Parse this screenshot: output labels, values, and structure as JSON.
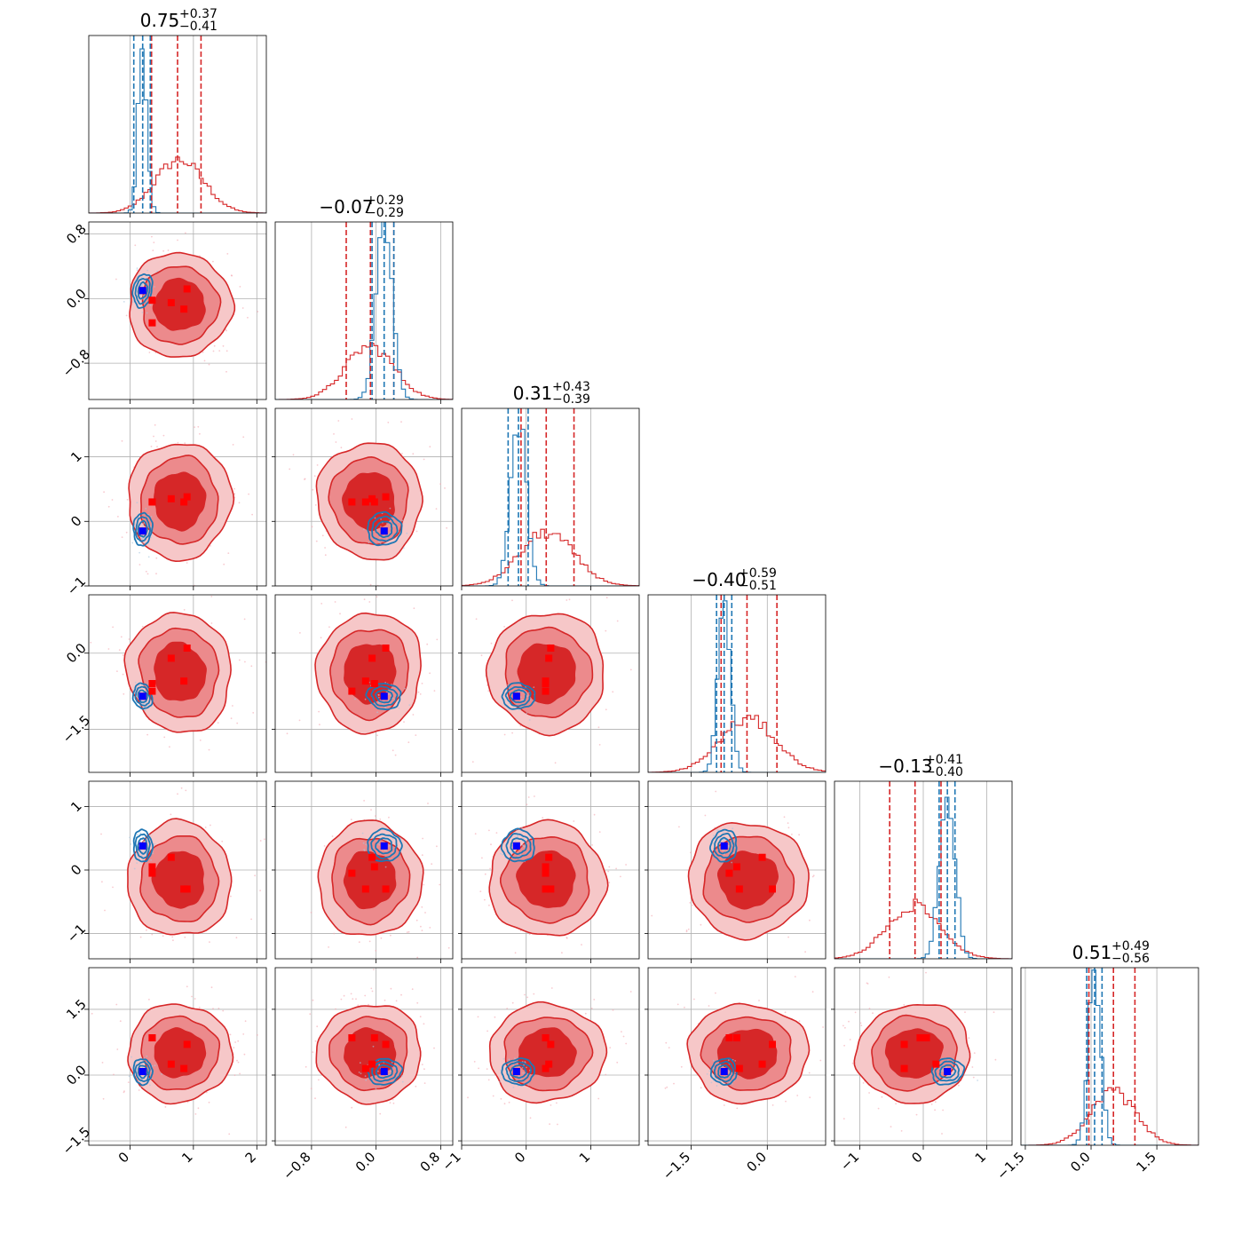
{
  "chart_data": {
    "type": "corner",
    "title": "",
    "colors": {
      "broad": "#d62728",
      "narrow": "#1f77b4",
      "marker_red": "#ff0000",
      "marker_blue": "#0000ff",
      "grid": "#b0b0b0"
    },
    "parameters": [
      {
        "title": "0.75",
        "plus": "+0.37",
        "minus": "−0.41",
        "range": [
          -0.65,
          2.15
        ],
        "ticks": [
          0,
          1,
          2
        ],
        "ticklabels": [
          "0",
          "1",
          "2"
        ],
        "broad": {
          "mean": 0.78,
          "sd": 0.38
        },
        "narrow": {
          "mean": 0.2,
          "sd": 0.07
        },
        "broad_q": [
          0.34,
          0.75,
          1.12
        ],
        "narrow_q": [
          0.06,
          0.2,
          0.32
        ]
      },
      {
        "title": "−0.07",
        "plus": "+0.29",
        "minus": "−0.29",
        "range": [
          -1.25,
          0.95
        ],
        "ticks": [
          -0.8,
          0.0,
          0.8
        ],
        "ticklabels": [
          "−0.8",
          "0.0",
          "0.8"
        ],
        "broad": {
          "mean": -0.08,
          "sd": 0.3
        },
        "narrow": {
          "mean": 0.1,
          "sd": 0.1
        },
        "broad_q": [
          -0.37,
          -0.07,
          0.22
        ],
        "narrow_q": [
          -0.05,
          0.1,
          0.22
        ]
      },
      {
        "title": "0.31",
        "plus": "+0.43",
        "minus": "−0.39",
        "range": [
          -1.0,
          1.75
        ],
        "ticks": [
          -1,
          0,
          1
        ],
        "ticklabels": [
          "−1",
          "0",
          "1"
        ],
        "broad": {
          "mean": 0.32,
          "sd": 0.42
        },
        "narrow": {
          "mean": -0.12,
          "sd": 0.12
        },
        "broad_q": [
          -0.08,
          0.31,
          0.74
        ],
        "narrow_q": [
          -0.28,
          -0.12,
          0.03
        ]
      },
      {
        "title": "−0.40",
        "plus": "+0.59",
        "minus": "−0.51",
        "range": [
          -2.35,
          1.15
        ],
        "ticks": [
          -1.5,
          0.0
        ],
        "ticklabels": [
          "−1.5",
          "0.0"
        ],
        "broad": {
          "mean": -0.38,
          "sd": 0.55
        },
        "narrow": {
          "mean": -0.85,
          "sd": 0.12
        },
        "broad_q": [
          -0.91,
          -0.4,
          0.19
        ],
        "narrow_q": [
          -1.0,
          -0.85,
          -0.7
        ]
      },
      {
        "title": "−0.13",
        "plus": "+0.41",
        "minus": "−0.40",
        "range": [
          -1.4,
          1.4
        ],
        "ticks": [
          -1,
          0,
          1
        ],
        "ticklabels": [
          "−1",
          "0",
          "1"
        ],
        "broad": {
          "mean": -0.15,
          "sd": 0.42
        },
        "narrow": {
          "mean": 0.38,
          "sd": 0.12
        },
        "broad_q": [
          -0.53,
          -0.13,
          0.28
        ],
        "narrow_q": [
          0.25,
          0.38,
          0.5
        ]
      },
      {
        "title": "0.51",
        "plus": "+0.49",
        "minus": "−0.56",
        "range": [
          -1.6,
          2.45
        ],
        "ticks": [
          -1.5,
          0.0,
          1.5
        ],
        "ticklabels": [
          "−1.5",
          "0.0",
          "1.5"
        ],
        "broad": {
          "mean": 0.5,
          "sd": 0.52
        },
        "narrow": {
          "mean": 0.08,
          "sd": 0.14
        },
        "broad_q": [
          -0.05,
          0.51,
          1.0
        ],
        "narrow_q": [
          -0.1,
          0.08,
          0.25
        ]
      }
    ],
    "true_points": [
      [
        0.35,
        -0.02,
        0.3,
        -0.6,
        0.05,
        0.85
      ],
      [
        0.65,
        -0.05,
        0.35,
        -0.1,
        0.2,
        0.25
      ],
      [
        0.85,
        -0.13,
        0.3,
        -0.55,
        -0.3,
        0.15
      ],
      [
        0.9,
        0.12,
        0.38,
        0.1,
        -0.3,
        0.7
      ],
      [
        0.35,
        -0.3,
        0.3,
        -0.75,
        -0.05,
        0.85
      ],
      [
        0.2,
        0.1,
        -0.15,
        -0.85,
        0.38,
        0.08
      ]
    ],
    "blue_point": [
      0.2,
      0.1,
      -0.15,
      -0.85,
      0.38,
      0.08
    ]
  }
}
